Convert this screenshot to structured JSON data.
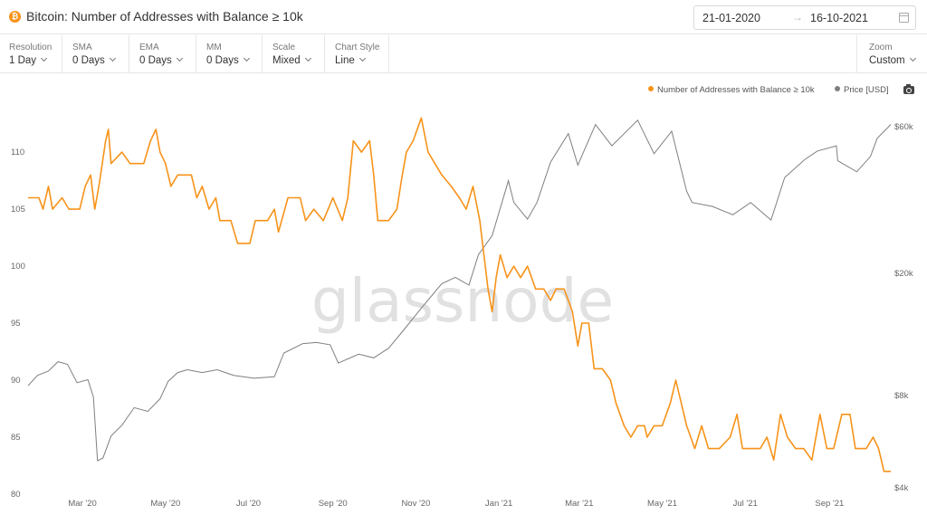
{
  "header": {
    "coin_symbol": "₿",
    "title": "Bitcoin: Number of Addresses with Balance ≥ 10k",
    "date_start": "21-01-2020",
    "date_arrow": "→",
    "date_end": "16-10-2021"
  },
  "toolbar": {
    "controls": [
      {
        "label": "Resolution",
        "value": "1 Day"
      },
      {
        "label": "SMA",
        "value": "0 Days"
      },
      {
        "label": "EMA",
        "value": "0 Days"
      },
      {
        "label": "MM",
        "value": "0 Days"
      },
      {
        "label": "Scale",
        "value": "Mixed"
      },
      {
        "label": "Chart Style",
        "value": "Line"
      }
    ],
    "zoom_label": "Zoom",
    "zoom_value": "Custom"
  },
  "watermark": "glassnode",
  "colors": {
    "addresses": "#f7931a",
    "price": "#7f7f7f",
    "accent": "#f7931a"
  },
  "chart_data": {
    "type": "line",
    "x_tick_labels": [
      "Mar '20",
      "May '20",
      "Jul '20",
      "Sep '20",
      "Nov '20",
      "Jan '21",
      "Mar '21",
      "May '21",
      "Jul '21",
      "Sep '21"
    ],
    "y_left_ticks": [
      80,
      85,
      90,
      95,
      100,
      105,
      110
    ],
    "y_right_tick_labels": [
      "$4k",
      "$8k",
      "$20k",
      "$60k"
    ],
    "y_right_ticks": [
      4000,
      8000,
      20000,
      60000
    ],
    "y_left_range": [
      80,
      113.5
    ],
    "y_right_scale": "log",
    "x_range": [
      "2020-01-21",
      "2021-10-16"
    ],
    "legend_position": "top-right",
    "grid": false,
    "series": [
      {
        "name": "Number of Addresses with Balance ≥ 10k",
        "axis": "left",
        "points": [
          [
            "2020-01-21",
            106
          ],
          [
            "2020-01-29",
            106
          ],
          [
            "2020-02-01",
            105
          ],
          [
            "2020-02-05",
            107
          ],
          [
            "2020-02-08",
            105
          ],
          [
            "2020-02-15",
            106
          ],
          [
            "2020-02-20",
            105
          ],
          [
            "2020-02-28",
            105
          ],
          [
            "2020-03-03",
            107
          ],
          [
            "2020-03-07",
            108
          ],
          [
            "2020-03-10",
            105
          ],
          [
            "2020-03-13",
            107
          ],
          [
            "2020-03-18",
            111
          ],
          [
            "2020-03-20",
            112
          ],
          [
            "2020-03-22",
            109
          ],
          [
            "2020-03-30",
            110
          ],
          [
            "2020-04-05",
            109
          ],
          [
            "2020-04-15",
            109
          ],
          [
            "2020-04-20",
            111
          ],
          [
            "2020-04-24",
            112
          ],
          [
            "2020-04-27",
            110
          ],
          [
            "2020-05-01",
            109
          ],
          [
            "2020-05-05",
            107
          ],
          [
            "2020-05-10",
            108
          ],
          [
            "2020-05-20",
            108
          ],
          [
            "2020-05-24",
            106
          ],
          [
            "2020-05-28",
            107
          ],
          [
            "2020-06-02",
            105
          ],
          [
            "2020-06-07",
            106
          ],
          [
            "2020-06-10",
            104
          ],
          [
            "2020-06-18",
            104
          ],
          [
            "2020-06-23",
            102
          ],
          [
            "2020-07-02",
            102
          ],
          [
            "2020-07-06",
            104
          ],
          [
            "2020-07-15",
            104
          ],
          [
            "2020-07-20",
            105
          ],
          [
            "2020-07-23",
            103
          ],
          [
            "2020-07-30",
            106
          ],
          [
            "2020-08-08",
            106
          ],
          [
            "2020-08-12",
            104
          ],
          [
            "2020-08-18",
            105
          ],
          [
            "2020-08-25",
            104
          ],
          [
            "2020-09-01",
            106
          ],
          [
            "2020-09-08",
            104
          ],
          [
            "2020-09-12",
            106
          ],
          [
            "2020-09-16",
            111
          ],
          [
            "2020-09-22",
            110
          ],
          [
            "2020-09-28",
            111
          ],
          [
            "2020-10-01",
            108
          ],
          [
            "2020-10-04",
            104
          ],
          [
            "2020-10-12",
            104
          ],
          [
            "2020-10-18",
            105
          ],
          [
            "2020-10-22",
            108
          ],
          [
            "2020-10-25",
            110
          ],
          [
            "2020-10-30",
            111
          ],
          [
            "2020-11-05",
            113
          ],
          [
            "2020-11-10",
            110
          ],
          [
            "2020-11-15",
            109
          ],
          [
            "2020-11-20",
            108
          ],
          [
            "2020-11-27",
            107
          ],
          [
            "2020-12-03",
            106
          ],
          [
            "2020-12-08",
            105
          ],
          [
            "2020-12-13",
            107
          ],
          [
            "2020-12-18",
            104
          ],
          [
            "2020-12-24",
            98
          ],
          [
            "2020-12-27",
            96
          ],
          [
            "2020-12-30",
            99
          ],
          [
            "2021-01-02",
            101
          ],
          [
            "2021-01-07",
            99
          ],
          [
            "2021-01-12",
            100
          ],
          [
            "2021-01-17",
            99
          ],
          [
            "2021-01-22",
            100
          ],
          [
            "2021-01-28",
            98
          ],
          [
            "2021-02-03",
            98
          ],
          [
            "2021-02-08",
            97
          ],
          [
            "2021-02-12",
            98
          ],
          [
            "2021-02-18",
            98
          ],
          [
            "2021-02-24",
            96
          ],
          [
            "2021-02-28",
            93
          ],
          [
            "2021-03-03",
            95
          ],
          [
            "2021-03-08",
            95
          ],
          [
            "2021-03-12",
            91
          ],
          [
            "2021-03-18",
            91
          ],
          [
            "2021-03-24",
            90
          ],
          [
            "2021-03-28",
            88
          ],
          [
            "2021-04-03",
            86
          ],
          [
            "2021-04-08",
            85
          ],
          [
            "2021-04-13",
            86
          ],
          [
            "2021-04-18",
            86
          ],
          [
            "2021-04-20",
            85
          ],
          [
            "2021-04-25",
            86
          ],
          [
            "2021-05-01",
            86
          ],
          [
            "2021-05-07",
            88
          ],
          [
            "2021-05-11",
            90
          ],
          [
            "2021-05-15",
            88
          ],
          [
            "2021-05-19",
            86
          ],
          [
            "2021-05-25",
            84
          ],
          [
            "2021-05-30",
            86
          ],
          [
            "2021-06-04",
            84
          ],
          [
            "2021-06-12",
            84
          ],
          [
            "2021-06-20",
            85
          ],
          [
            "2021-06-25",
            87
          ],
          [
            "2021-06-29",
            84
          ],
          [
            "2021-07-05",
            84
          ],
          [
            "2021-07-12",
            84
          ],
          [
            "2021-07-17",
            85
          ],
          [
            "2021-07-22",
            83
          ],
          [
            "2021-07-27",
            87
          ],
          [
            "2021-08-01",
            85
          ],
          [
            "2021-08-07",
            84
          ],
          [
            "2021-08-13",
            84
          ],
          [
            "2021-08-19",
            83
          ],
          [
            "2021-08-25",
            87
          ],
          [
            "2021-08-30",
            84
          ],
          [
            "2021-09-04",
            84
          ],
          [
            "2021-09-10",
            87
          ],
          [
            "2021-09-16",
            87
          ],
          [
            "2021-09-20",
            84
          ],
          [
            "2021-09-28",
            84
          ],
          [
            "2021-10-03",
            85
          ],
          [
            "2021-10-07",
            84
          ],
          [
            "2021-10-11",
            82
          ],
          [
            "2021-10-16",
            82
          ]
        ]
      },
      {
        "name": "Price [USD]",
        "axis": "right",
        "points": [
          [
            "2020-01-21",
            8600
          ],
          [
            "2020-01-28",
            9300
          ],
          [
            "2020-02-05",
            9600
          ],
          [
            "2020-02-12",
            10300
          ],
          [
            "2020-02-19",
            10100
          ],
          [
            "2020-02-26",
            8800
          ],
          [
            "2020-03-05",
            9000
          ],
          [
            "2020-03-09",
            7900
          ],
          [
            "2020-03-12",
            4900
          ],
          [
            "2020-03-16",
            5000
          ],
          [
            "2020-03-22",
            5900
          ],
          [
            "2020-03-30",
            6400
          ],
          [
            "2020-04-08",
            7300
          ],
          [
            "2020-04-18",
            7100
          ],
          [
            "2020-04-27",
            7800
          ],
          [
            "2020-05-03",
            8900
          ],
          [
            "2020-05-10",
            9500
          ],
          [
            "2020-05-17",
            9700
          ],
          [
            "2020-05-28",
            9500
          ],
          [
            "2020-06-08",
            9700
          ],
          [
            "2020-06-20",
            9300
          ],
          [
            "2020-07-05",
            9100
          ],
          [
            "2020-07-20",
            9200
          ],
          [
            "2020-07-27",
            11000
          ],
          [
            "2020-08-10",
            11800
          ],
          [
            "2020-08-20",
            11900
          ],
          [
            "2020-08-30",
            11700
          ],
          [
            "2020-09-05",
            10200
          ],
          [
            "2020-09-20",
            10900
          ],
          [
            "2020-10-01",
            10600
          ],
          [
            "2020-10-12",
            11400
          ],
          [
            "2020-10-22",
            12900
          ],
          [
            "2020-11-05",
            15400
          ],
          [
            "2020-11-20",
            18500
          ],
          [
            "2020-11-30",
            19400
          ],
          [
            "2020-12-10",
            18300
          ],
          [
            "2020-12-17",
            23000
          ],
          [
            "2020-12-27",
            26500
          ],
          [
            "2021-01-08",
            40000
          ],
          [
            "2021-01-12",
            34000
          ],
          [
            "2021-01-22",
            30000
          ],
          [
            "2021-01-29",
            34000
          ],
          [
            "2021-02-08",
            46000
          ],
          [
            "2021-02-21",
            57000
          ],
          [
            "2021-02-28",
            45000
          ],
          [
            "2021-03-13",
            61000
          ],
          [
            "2021-03-25",
            52000
          ],
          [
            "2021-04-13",
            63000
          ],
          [
            "2021-04-25",
            49000
          ],
          [
            "2021-05-08",
            58000
          ],
          [
            "2021-05-19",
            37000
          ],
          [
            "2021-05-23",
            34000
          ],
          [
            "2021-06-07",
            33000
          ],
          [
            "2021-06-22",
            31000
          ],
          [
            "2021-07-05",
            34000
          ],
          [
            "2021-07-20",
            29800
          ],
          [
            "2021-07-30",
            41000
          ],
          [
            "2021-08-14",
            47000
          ],
          [
            "2021-08-23",
            50000
          ],
          [
            "2021-09-06",
            52000
          ],
          [
            "2021-09-07",
            46500
          ],
          [
            "2021-09-21",
            42800
          ],
          [
            "2021-10-01",
            48000
          ],
          [
            "2021-10-06",
            55000
          ],
          [
            "2021-10-16",
            61000
          ]
        ]
      }
    ]
  }
}
